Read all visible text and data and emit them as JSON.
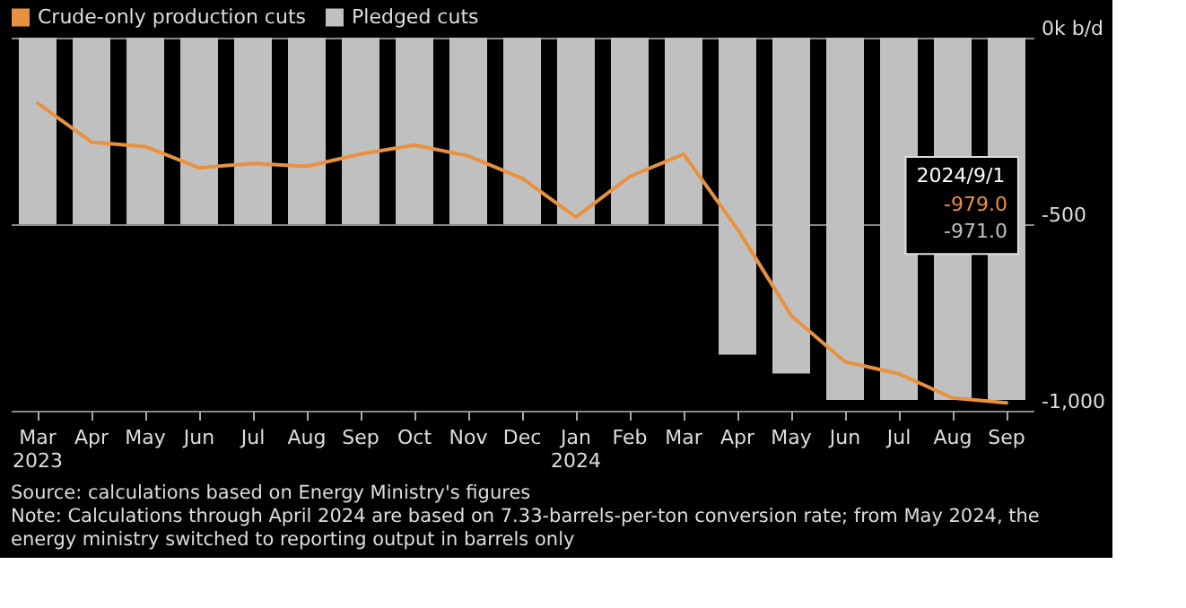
{
  "chart_data": {
    "type": "bar",
    "categories": [
      "Mar 2023",
      "Apr",
      "May",
      "Jun",
      "Jul",
      "Aug",
      "Sep",
      "Oct",
      "Nov",
      "Dec",
      "Jan 2024",
      "Feb",
      "Mar",
      "Apr",
      "May",
      "Jun",
      "Jul",
      "Aug",
      "Sep"
    ],
    "series": [
      {
        "name": "Crude-only production cuts",
        "type": "line",
        "color": "#e8913f",
        "values": [
          -176,
          -280,
          -292,
          -349,
          -337,
          -345,
          -312,
          -288,
          -317,
          -377,
          -481,
          -372,
          -312,
          -513,
          -745,
          -869,
          -901,
          -966,
          -979
        ]
      },
      {
        "name": "Pledged cuts",
        "color": "#c0c0c0",
        "values": [
          -500,
          -500,
          -500,
          -500,
          -500,
          -500,
          -500,
          -500,
          -500,
          -500,
          -500,
          -500,
          -500,
          -850,
          -900,
          -971,
          -971,
          -971,
          -971
        ]
      }
    ],
    "ylim": [
      -1000,
      0
    ],
    "yticks": [
      {
        "value": 0,
        "label": "0k b/d"
      },
      {
        "value": -500,
        "label": "-500"
      },
      {
        "value": -1000,
        "label": "-1,000"
      }
    ],
    "grid": "y",
    "legend": "top left",
    "annotations": [
      "2024/9/1",
      "-979.0",
      "-971.0",
      "Source: calculations based on Energy Ministry's figures",
      "Note: Calculations through April 2024 are based on 7.33-barrels-per-ton conversion rate; from May 2024, the energy ministry switched to reporting output in barrels only"
    ]
  }
}
